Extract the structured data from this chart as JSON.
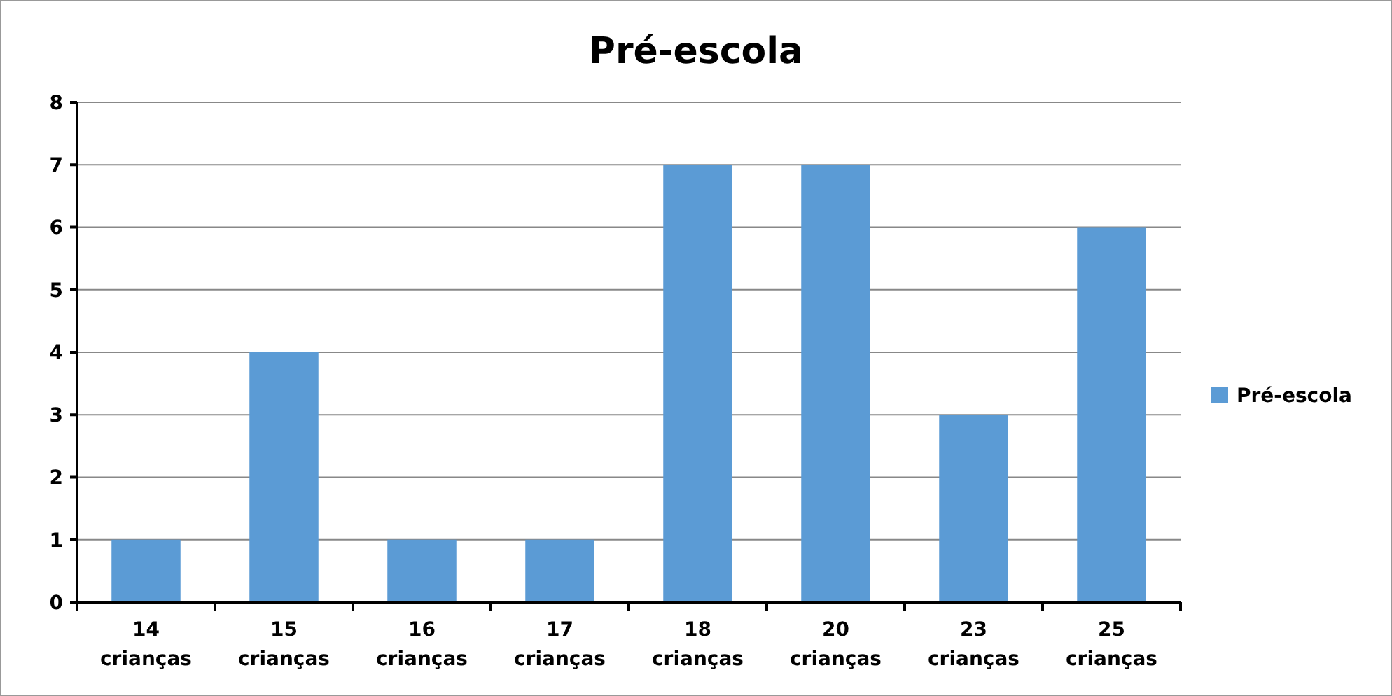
{
  "chart_data": {
    "type": "bar",
    "title": "Pré-escola",
    "categories": [
      "14 crianças",
      "15 crianças",
      "16 crianças",
      "17 crianças",
      "18 crianças",
      "20 crianças",
      "23 crianças",
      "25 crianças"
    ],
    "series": [
      {
        "name": "Pré-escola",
        "color": "#5b9bd5",
        "values": [
          1,
          4,
          1,
          1,
          7,
          7,
          3,
          6
        ]
      }
    ],
    "ylim": [
      0,
      8
    ],
    "yticks": [
      0,
      1,
      2,
      3,
      4,
      5,
      6,
      7,
      8
    ],
    "grid": "y",
    "legend": "right"
  }
}
